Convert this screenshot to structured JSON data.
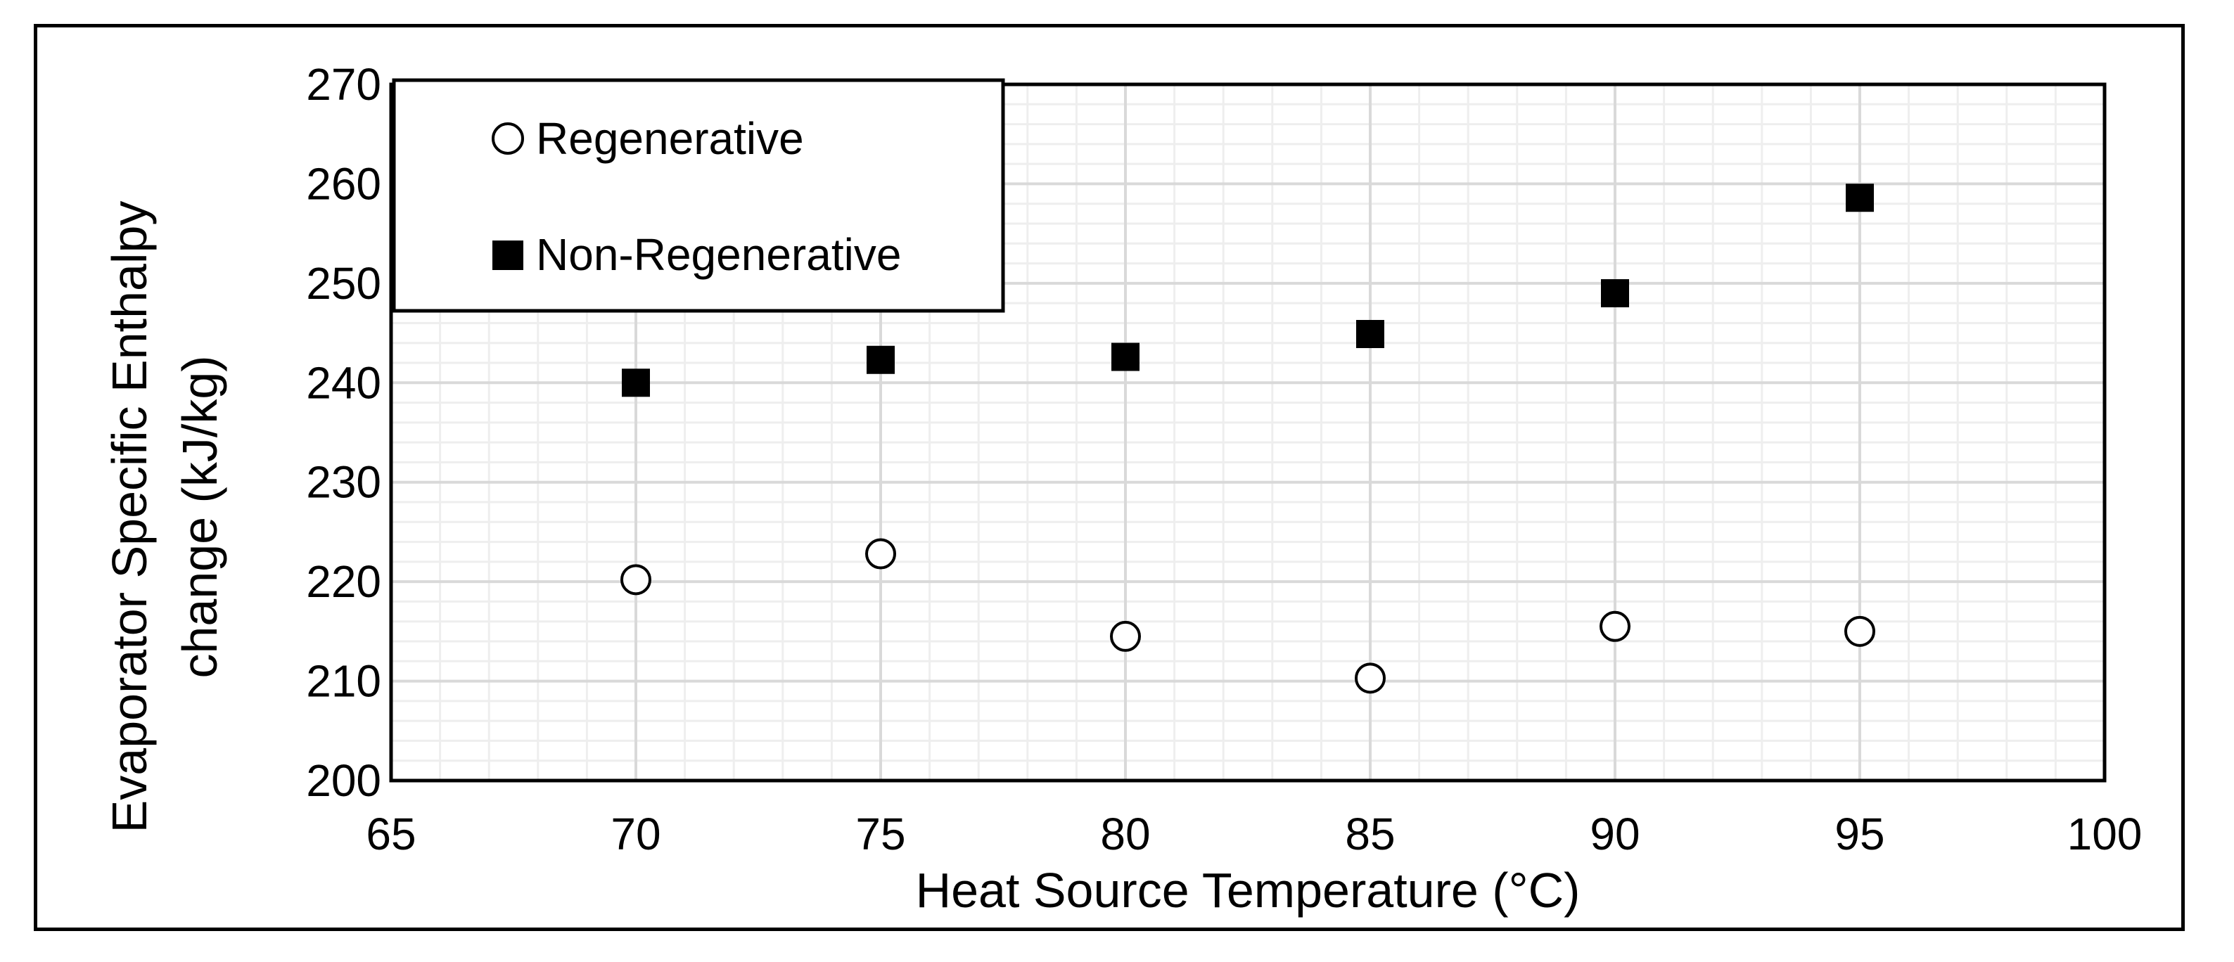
{
  "chart_data": {
    "type": "scatter",
    "title": "",
    "xlabel": "Heat Source Temperature (°C)",
    "ylabel_lines": [
      "Evaporator Specific Enthalpy",
      "change (kJ/kg)"
    ],
    "xlim": [
      65,
      100
    ],
    "ylim": [
      200,
      270
    ],
    "x_ticks": [
      65,
      70,
      75,
      80,
      85,
      90,
      95,
      100
    ],
    "y_ticks": [
      200,
      210,
      220,
      230,
      240,
      250,
      260,
      270
    ],
    "x_minor_step": 1,
    "y_minor_step": 2,
    "grid": true,
    "legend_position": "top-left",
    "colors": {
      "grid_major": "#d9d9d9",
      "grid_minor": "#eeeeee",
      "axis": "#000000",
      "marker": "#000000",
      "marker_fill_open": "#ffffff"
    },
    "series": [
      {
        "name": "Regenerative",
        "marker": "circle-open",
        "points": [
          {
            "x": 70,
            "y": 220.2
          },
          {
            "x": 75,
            "y": 222.8
          },
          {
            "x": 80,
            "y": 214.5
          },
          {
            "x": 85,
            "y": 210.3
          },
          {
            "x": 90,
            "y": 215.5
          },
          {
            "x": 95,
            "y": 215.0
          }
        ]
      },
      {
        "name": "Non-Regenerative",
        "marker": "square-filled",
        "points": [
          {
            "x": 70,
            "y": 240.0
          },
          {
            "x": 75,
            "y": 242.3
          },
          {
            "x": 80,
            "y": 242.6
          },
          {
            "x": 85,
            "y": 244.9
          },
          {
            "x": 90,
            "y": 249.0
          },
          {
            "x": 95,
            "y": 258.6
          }
        ]
      }
    ]
  }
}
